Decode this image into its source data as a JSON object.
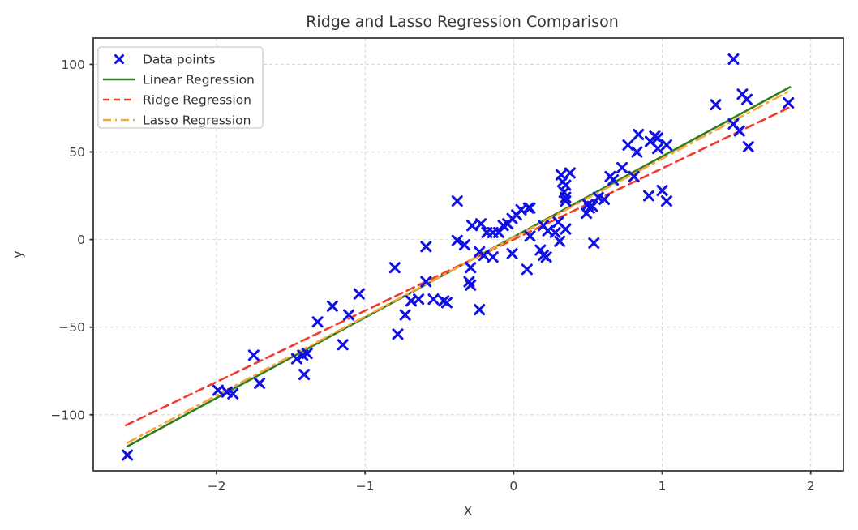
{
  "chart_data": {
    "type": "scatter",
    "title": "Ridge and Lasso Regression Comparison",
    "xlabel": "X",
    "ylabel": "y",
    "axes": {
      "xlim": [
        -2.83,
        2.22
      ],
      "ylim": [
        -132,
        115
      ],
      "xticks": [
        -2,
        -1,
        0,
        1,
        2
      ],
      "yticks": [
        -100,
        -50,
        0,
        50,
        100
      ],
      "grid": true,
      "grid_style": "dashed"
    },
    "legend": {
      "position": "upper-left",
      "entries": [
        "Data points",
        "Linear Regression",
        "Ridge Regression",
        "Lasso Regression"
      ]
    },
    "colors": {
      "scatter": "#0f0fe6",
      "linear": "#2f7d1f",
      "ridge": "#f23b2e",
      "lasso": "#f7a63b",
      "grid": "#d9d9d9",
      "spine": "#3b3b3b",
      "text": "#333333"
    },
    "series": [
      {
        "name": "Data points",
        "kind": "scatter",
        "marker": "x",
        "color": "#0f0fe6",
        "points": [
          [
            -2.6,
            -123
          ],
          [
            -1.99,
            -86
          ],
          [
            -1.93,
            -87
          ],
          [
            -1.89,
            -88
          ],
          [
            -1.75,
            -66
          ],
          [
            -1.71,
            -82
          ],
          [
            -1.46,
            -68
          ],
          [
            -1.42,
            -66
          ],
          [
            -1.39,
            -65
          ],
          [
            -1.41,
            -77
          ],
          [
            -1.32,
            -47
          ],
          [
            -1.22,
            -38
          ],
          [
            -1.15,
            -60
          ],
          [
            -1.11,
            -43
          ],
          [
            -1.04,
            -31
          ],
          [
            -0.8,
            -16
          ],
          [
            -0.78,
            -54
          ],
          [
            -0.73,
            -43
          ],
          [
            -0.69,
            -35
          ],
          [
            -0.64,
            -34
          ],
          [
            -0.59,
            -24
          ],
          [
            -0.59,
            -4
          ],
          [
            -0.54,
            -34
          ],
          [
            -0.47,
            -35
          ],
          [
            -0.45,
            -36
          ],
          [
            -0.38,
            22
          ],
          [
            -0.38,
            -0.5
          ],
          [
            -0.33,
            -3
          ],
          [
            -0.3,
            -24
          ],
          [
            -0.29,
            -26
          ],
          [
            -0.29,
            -16
          ],
          [
            -0.28,
            8
          ],
          [
            -0.23,
            -7
          ],
          [
            -0.23,
            -40
          ],
          [
            -0.22,
            9
          ],
          [
            -0.2,
            -9
          ],
          [
            -0.18,
            4
          ],
          [
            -0.14,
            4
          ],
          [
            -0.14,
            -10
          ],
          [
            -0.1,
            4
          ],
          [
            -0.07,
            8
          ],
          [
            -0.04,
            9
          ],
          [
            -0.01,
            12
          ],
          [
            -0.01,
            -8
          ],
          [
            0.02,
            14
          ],
          [
            0.05,
            17
          ],
          [
            0.09,
            -17
          ],
          [
            0.1,
            18
          ],
          [
            0.11,
            18
          ],
          [
            0.11,
            2
          ],
          [
            0.18,
            -6
          ],
          [
            0.2,
            -9
          ],
          [
            0.22,
            -10
          ],
          [
            0.2,
            8
          ],
          [
            0.23,
            5
          ],
          [
            0.28,
            4
          ],
          [
            0.3,
            10
          ],
          [
            0.31,
            -1
          ],
          [
            0.35,
            6
          ],
          [
            0.32,
            37
          ],
          [
            0.33,
            33
          ],
          [
            0.35,
            31
          ],
          [
            0.34,
            27
          ],
          [
            0.35,
            24
          ],
          [
            0.35,
            22
          ],
          [
            0.38,
            38
          ],
          [
            0.49,
            15
          ],
          [
            0.5,
            20
          ],
          [
            0.51,
            18
          ],
          [
            0.53,
            19
          ],
          [
            0.54,
            -2
          ],
          [
            0.57,
            24
          ],
          [
            0.61,
            23
          ],
          [
            0.65,
            36
          ],
          [
            0.67,
            34
          ],
          [
            0.73,
            41
          ],
          [
            0.77,
            54
          ],
          [
            0.81,
            36
          ],
          [
            0.83,
            50
          ],
          [
            0.84,
            60
          ],
          [
            0.91,
            25
          ],
          [
            0.92,
            56
          ],
          [
            0.95,
            59
          ],
          [
            0.97,
            58
          ],
          [
            0.97,
            52
          ],
          [
            1.0,
            28
          ],
          [
            1.03,
            54
          ],
          [
            1.03,
            22
          ],
          [
            1.36,
            77
          ],
          [
            1.48,
            103
          ],
          [
            1.48,
            66
          ],
          [
            1.52,
            62
          ],
          [
            1.54,
            83
          ],
          [
            1.57,
            80
          ],
          [
            1.58,
            53
          ],
          [
            1.85,
            78
          ]
        ]
      },
      {
        "name": "Linear Regression",
        "kind": "line",
        "style": "solid",
        "color": "#2f7d1f",
        "x": [
          -2.6,
          1.86
        ],
        "y": [
          -118,
          87
        ]
      },
      {
        "name": "Ridge Regression",
        "kind": "line",
        "style": "dashed",
        "color": "#f23b2e",
        "x": [
          -2.61,
          1.87
        ],
        "y": [
          -106,
          76
        ]
      },
      {
        "name": "Lasso Regression",
        "kind": "line",
        "style": "dashdot",
        "color": "#f7a63b",
        "x": [
          -2.6,
          1.85
        ],
        "y": [
          -116,
          84.5
        ]
      }
    ]
  }
}
